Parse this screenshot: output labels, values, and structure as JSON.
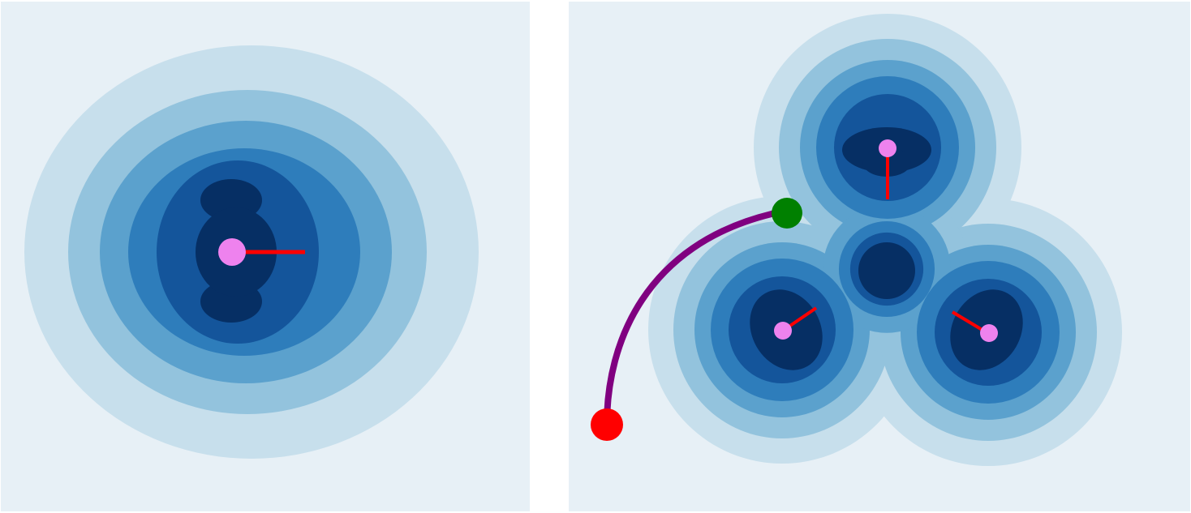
{
  "colors": {
    "background": "#e7f0f6",
    "contour_levels": [
      "#c7dfec",
      "#93c3dd",
      "#5ba1cd",
      "#2e7dbb",
      "#14559b",
      "#062f64"
    ],
    "charge": "#ee82ee",
    "dipole": "#ff0000",
    "path": "#800080",
    "start_point": "#ff0000",
    "end_point": "#008000"
  },
  "icons": {
    "charge": "pink-charge-dot",
    "dipole": "red-dipole-line",
    "start": "red-start-dot",
    "end": "green-end-dot"
  },
  "panels": [
    {
      "name": "single-charge-field",
      "charges": [
        {
          "name": "charge-center",
          "dipole_angle_deg": 0
        }
      ]
    },
    {
      "name": "three-charge-field",
      "charges": [
        {
          "name": "charge-top",
          "dipole_angle_deg": 90
        },
        {
          "name": "charge-bottom-left",
          "dipole_angle_deg": -34
        },
        {
          "name": "charge-bottom-right",
          "dipole_angle_deg": 210
        }
      ],
      "trajectory": {
        "start": "red-start-dot",
        "end": "green-end-dot"
      }
    }
  ]
}
